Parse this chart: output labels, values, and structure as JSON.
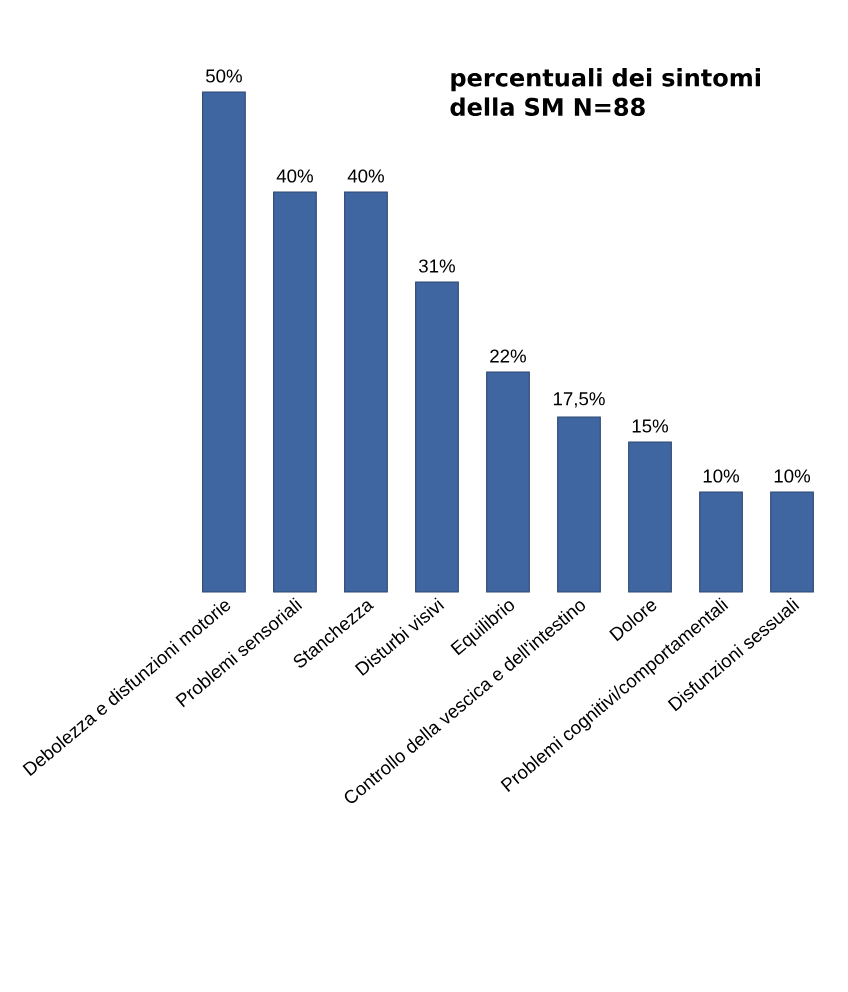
{
  "chart_data": {
    "type": "bar",
    "title": "percentuali dei sintomi della SM N=88",
    "categories": [
      "Debolezza e disfunzioni motorie",
      "Problemi sensoriali",
      "Stanchezza",
      "Disturbi visivi",
      "Equilibrio",
      "Controllo della vescica e dell'intestino",
      "Dolore",
      "Problemi cognitivi/comportamentali",
      "Disfunzioni sessuali"
    ],
    "values": [
      50,
      40,
      40,
      31,
      22,
      17.5,
      15,
      10,
      10
    ],
    "value_labels": [
      "50%",
      "40%",
      "40%",
      "31%",
      "22%",
      "17,5%",
      "15%",
      "10%",
      "10%"
    ],
    "color": "#3f66a0"
  }
}
